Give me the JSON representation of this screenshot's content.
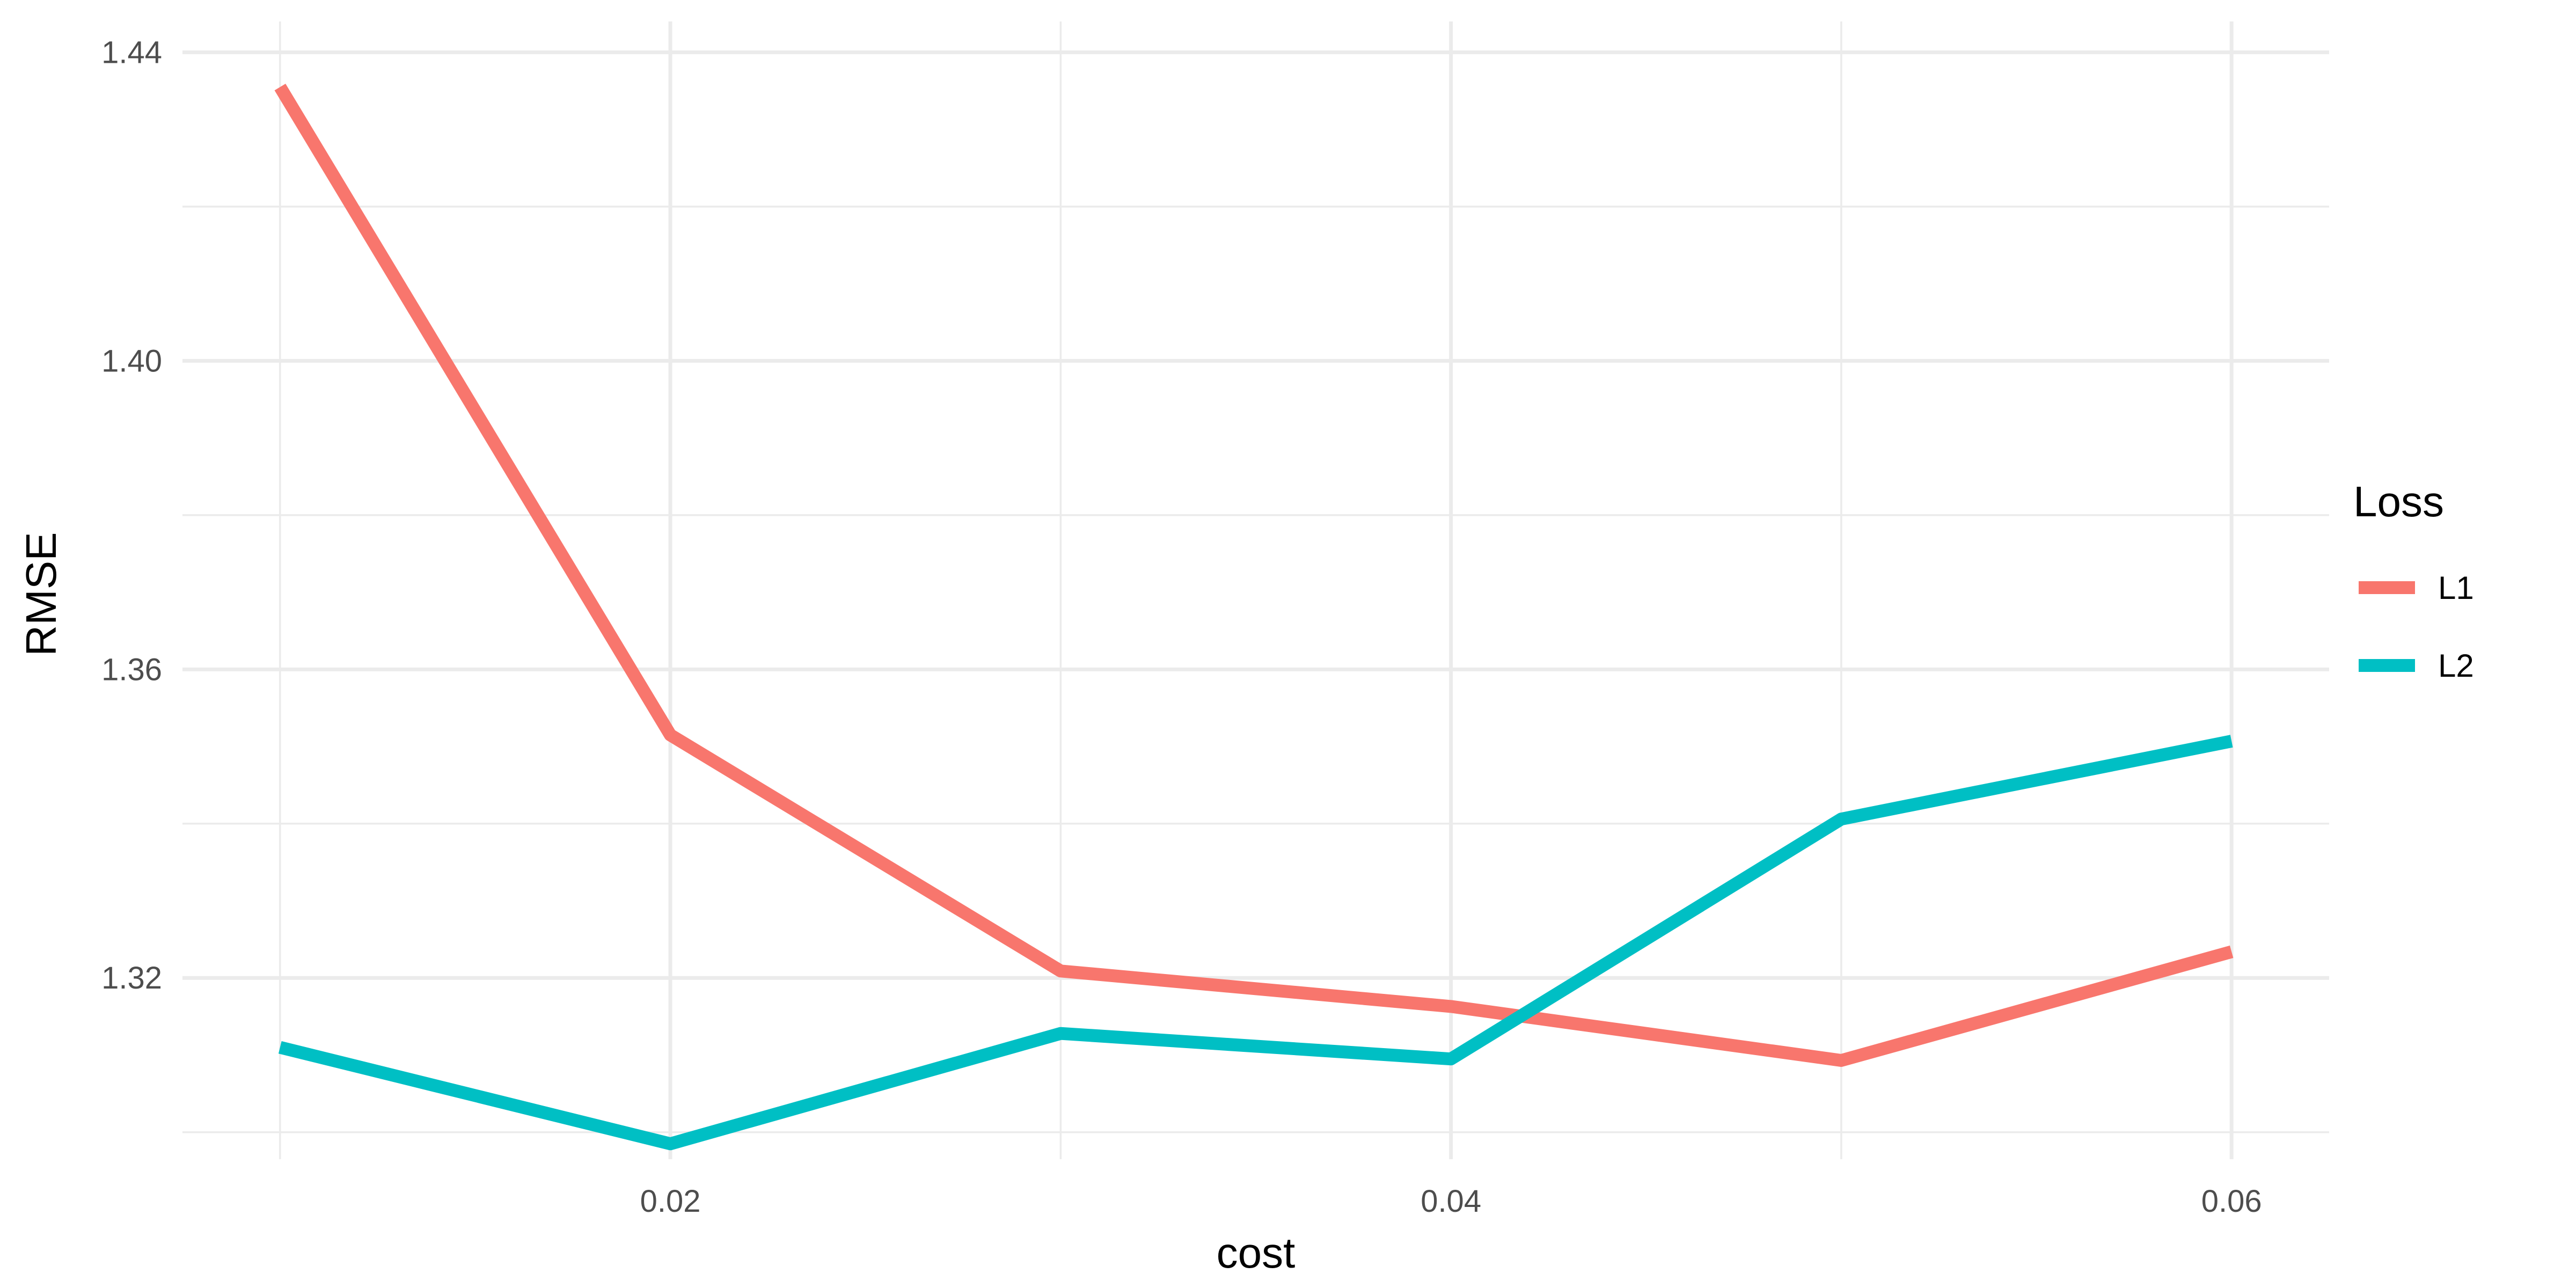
{
  "chart_data": {
    "type": "line",
    "xlabel": "cost",
    "ylabel": "RMSE",
    "xlim": [
      0.0075,
      0.0625
    ],
    "ylim": [
      1.2965,
      1.444
    ],
    "x_ticks": [
      0.02,
      0.04,
      0.06
    ],
    "x_tick_labels": [
      "0.02",
      "0.04",
      "0.06"
    ],
    "x_minor_ticks": [
      0.01,
      0.03,
      0.05
    ],
    "y_ticks": [
      1.32,
      1.36,
      1.4,
      1.44
    ],
    "y_tick_labels": [
      "1.32",
      "1.36",
      "1.40",
      "1.44"
    ],
    "y_minor_ticks": [
      1.3,
      1.34,
      1.38,
      1.42
    ],
    "grid": true,
    "legend": {
      "title": "Loss",
      "position": "right"
    },
    "series": [
      {
        "name": "L1",
        "color": "#F8766D",
        "x": [
          0.01,
          0.02,
          0.03,
          0.04,
          0.05,
          0.06
        ],
        "y": [
          1.4355,
          1.3515,
          1.3209,
          1.3163,
          1.3093,
          1.3234
        ]
      },
      {
        "name": "L2",
        "color": "#00BFC4",
        "x": [
          0.01,
          0.02,
          0.03,
          0.04,
          0.05,
          0.06
        ],
        "y": [
          1.311,
          1.2985,
          1.3128,
          1.3095,
          1.3406,
          1.3507
        ]
      }
    ]
  }
}
